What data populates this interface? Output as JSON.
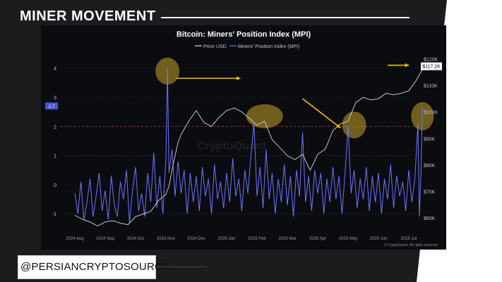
{
  "header": {
    "title": "MINER MOVEMENT"
  },
  "footer": {
    "handle": "@PERSIANCRYPTOSOURCE"
  },
  "colors": {
    "background": "#1c1c1e",
    "panel": "#0b0c10",
    "mpi": "#6b74ff",
    "price": "#d9d9d9",
    "highlight": "#c9a227",
    "arrow": "#f2c200",
    "threshold": "#c0392b"
  },
  "chart_data": {
    "type": "line",
    "title": "Bitcoin: Miners' Position Index (MPI)",
    "legend": [
      "Price USD",
      "Miners' Position Index (MPI)"
    ],
    "legend_position": "top-center",
    "watermark": "CryptoQuant",
    "credit": "© CryptoQuant. All rights reserved",
    "x_ticks": [
      "2024 Aug",
      "2024 Sep",
      "2024 Oct",
      "2024 Nov",
      "2024 Dec",
      "2025 Jan",
      "2025 Feb",
      "2025 Mar",
      "2025 Apr",
      "2025 May",
      "2025 Jun",
      "2025 Jul"
    ],
    "y_left_ticks": [
      "4",
      "3",
      "2",
      "1",
      "0",
      "-1"
    ],
    "y_left_range": [
      -1.6,
      4.5
    ],
    "y_right_ticks": [
      "$60K",
      "$70K",
      "$80K",
      "$90K",
      "$100K",
      "$110K",
      "$120K"
    ],
    "y_right_range": [
      55000,
      122000
    ],
    "threshold_line": 2,
    "mpi_current_label": "2.7",
    "price_current_label": "$117.2K",
    "grid": true,
    "price_series": {
      "name": "Price USD",
      "points": [
        [
          0,
          61000
        ],
        [
          0.25,
          59500
        ],
        [
          0.5,
          58500
        ],
        [
          0.75,
          57000
        ],
        [
          1,
          58500
        ],
        [
          1.25,
          59000
        ],
        [
          1.5,
          58000
        ],
        [
          1.75,
          57500
        ],
        [
          2,
          60500
        ],
        [
          2.25,
          61500
        ],
        [
          2.5,
          62500
        ],
        [
          2.75,
          66500
        ],
        [
          3,
          69000
        ],
        [
          3.1,
          72000
        ],
        [
          3.25,
          81000
        ],
        [
          3.4,
          88500
        ],
        [
          3.5,
          91500
        ],
        [
          3.75,
          96500
        ],
        [
          4,
          100500
        ],
        [
          4.25,
          96000
        ],
        [
          4.5,
          94500
        ],
        [
          4.75,
          98000
        ],
        [
          5,
          100500
        ],
        [
          5.25,
          101500
        ],
        [
          5.5,
          100000
        ],
        [
          5.75,
          97500
        ],
        [
          6,
          95000
        ],
        [
          6.25,
          96500
        ],
        [
          6.5,
          89500
        ],
        [
          6.75,
          86500
        ],
        [
          7,
          83500
        ],
        [
          7.25,
          82000
        ],
        [
          7.5,
          84000
        ],
        [
          7.75,
          78000
        ],
        [
          8,
          84000
        ],
        [
          8.25,
          86000
        ],
        [
          8.5,
          93000
        ],
        [
          8.75,
          95500
        ],
        [
          9,
          96500
        ],
        [
          9.25,
          103500
        ],
        [
          9.5,
          105500
        ],
        [
          9.75,
          104500
        ],
        [
          10,
          105000
        ],
        [
          10.25,
          107000
        ],
        [
          10.5,
          106500
        ],
        [
          10.75,
          107000
        ],
        [
          11,
          108000
        ],
        [
          11.25,
          112000
        ],
        [
          11.5,
          117200
        ]
      ]
    },
    "mpi_series": {
      "name": "Miners' Position Index (MPI)",
      "points": [
        [
          0,
          -0.3
        ],
        [
          0.1,
          -1.0
        ],
        [
          0.2,
          0.1
        ],
        [
          0.3,
          -1.2
        ],
        [
          0.4,
          -0.6
        ],
        [
          0.5,
          0.2
        ],
        [
          0.6,
          -1.1
        ],
        [
          0.7,
          -0.4
        ],
        [
          0.8,
          0.4
        ],
        [
          0.9,
          -0.9
        ],
        [
          1.0,
          -0.2
        ],
        [
          1.1,
          -1.2
        ],
        [
          1.2,
          0.3
        ],
        [
          1.3,
          -0.7
        ],
        [
          1.4,
          -1.1
        ],
        [
          1.5,
          0.1
        ],
        [
          1.6,
          -0.5
        ],
        [
          1.7,
          0.5
        ],
        [
          1.8,
          -1.3
        ],
        [
          1.9,
          -0.2
        ],
        [
          2.0,
          0.6
        ],
        [
          2.1,
          -0.9
        ],
        [
          2.2,
          -0.3
        ],
        [
          2.3,
          -1.1
        ],
        [
          2.4,
          0.4
        ],
        [
          2.5,
          -0.6
        ],
        [
          2.6,
          1.1
        ],
        [
          2.7,
          -0.8
        ],
        [
          2.8,
          0.3
        ],
        [
          2.9,
          -1.0
        ],
        [
          3.0,
          0.9
        ],
        [
          3.05,
          4.0
        ],
        [
          3.1,
          0.4
        ],
        [
          3.2,
          1.2
        ],
        [
          3.3,
          -0.4
        ],
        [
          3.4,
          0.8
        ],
        [
          3.5,
          -0.3
        ],
        [
          3.6,
          0.5
        ],
        [
          3.7,
          -1.0
        ],
        [
          3.8,
          0.4
        ],
        [
          3.9,
          -0.6
        ],
        [
          4.0,
          0.3
        ],
        [
          4.1,
          -0.9
        ],
        [
          4.2,
          0.6
        ],
        [
          4.3,
          -0.4
        ],
        [
          4.4,
          0.2
        ],
        [
          4.5,
          -1.0
        ],
        [
          4.6,
          0.7
        ],
        [
          4.7,
          -0.5
        ],
        [
          4.8,
          0.1
        ],
        [
          4.9,
          -0.8
        ],
        [
          5.0,
          0.4
        ],
        [
          5.1,
          -0.6
        ],
        [
          5.2,
          0.9
        ],
        [
          5.3,
          -0.4
        ],
        [
          5.4,
          0.2
        ],
        [
          5.5,
          -0.9
        ],
        [
          5.6,
          0.5
        ],
        [
          5.7,
          -0.3
        ],
        [
          5.8,
          1.0
        ],
        [
          5.9,
          2.1
        ],
        [
          6.0,
          -0.4
        ],
        [
          6.1,
          0.6
        ],
        [
          6.2,
          -0.8
        ],
        [
          6.3,
          1.2
        ],
        [
          6.4,
          -0.5
        ],
        [
          6.5,
          0.4
        ],
        [
          6.6,
          -1.0
        ],
        [
          6.7,
          0.2
        ],
        [
          6.8,
          -0.6
        ],
        [
          6.9,
          0.7
        ],
        [
          7.0,
          -0.7
        ],
        [
          7.1,
          0.3
        ],
        [
          7.2,
          -1.1
        ],
        [
          7.3,
          0.5
        ],
        [
          7.4,
          -0.4
        ],
        [
          7.5,
          1.8
        ],
        [
          7.6,
          -0.6
        ],
        [
          7.7,
          0.3
        ],
        [
          7.8,
          -0.9
        ],
        [
          7.9,
          0.5
        ],
        [
          8.0,
          -0.3
        ],
        [
          8.1,
          0.4
        ],
        [
          8.2,
          -1.0
        ],
        [
          8.3,
          0.2
        ],
        [
          8.4,
          -0.6
        ],
        [
          8.5,
          0.6
        ],
        [
          8.6,
          -0.5
        ],
        [
          8.7,
          0.3
        ],
        [
          8.8,
          -1.0
        ],
        [
          8.9,
          0.4
        ],
        [
          9.0,
          2.0
        ],
        [
          9.1,
          -0.3
        ],
        [
          9.2,
          0.5
        ],
        [
          9.3,
          -0.8
        ],
        [
          9.4,
          0.2
        ],
        [
          9.5,
          -0.5
        ],
        [
          9.6,
          0.6
        ],
        [
          9.7,
          -0.9
        ],
        [
          9.8,
          0.3
        ],
        [
          9.9,
          -0.6
        ],
        [
          10.0,
          0.4
        ],
        [
          10.1,
          -1.0
        ],
        [
          10.2,
          0.2
        ],
        [
          10.3,
          -0.5
        ],
        [
          10.4,
          0.7
        ],
        [
          10.5,
          -0.8
        ],
        [
          10.6,
          0.3
        ],
        [
          10.7,
          -0.4
        ],
        [
          10.8,
          0.1
        ],
        [
          10.9,
          -0.9
        ],
        [
          11.0,
          0.5
        ],
        [
          11.1,
          -0.6
        ],
        [
          11.2,
          0.2
        ],
        [
          11.3,
          2.1
        ],
        [
          11.35,
          -1.1
        ],
        [
          11.4,
          0.4
        ],
        [
          11.45,
          2.7
        ]
      ]
    }
  }
}
